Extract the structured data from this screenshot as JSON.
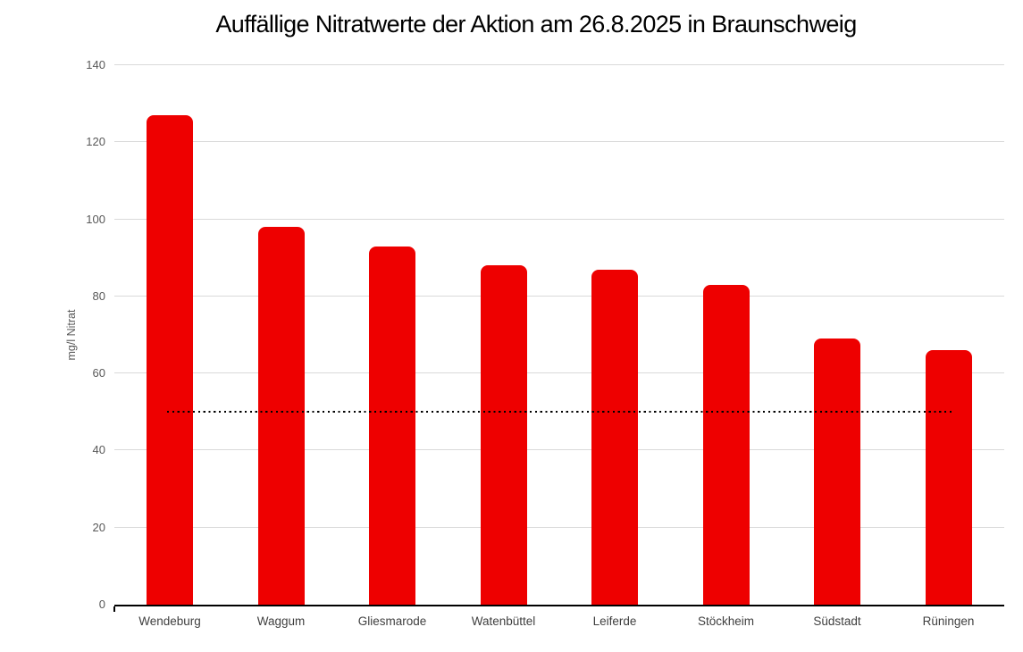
{
  "chart_data": {
    "type": "bar",
    "title": "Auffällige Nitratwerte der Aktion am 26.8.2025 in Braunschweig",
    "ylabel": "mg/l Nitrat",
    "xlabel": "",
    "categories": [
      "Wendeburg",
      "Waggum",
      "Gliesmarode",
      "Watenbüttel",
      "Leiferde",
      "Stöckheim",
      "Südstadt",
      "Rüningen"
    ],
    "values": [
      127,
      98,
      93,
      88,
      87,
      83,
      69,
      66
    ],
    "ylim": [
      0,
      140
    ],
    "ytick_step": 20,
    "ytick_labels": [
      "0",
      "20",
      "40",
      "60",
      "80",
      "100",
      "120",
      "140"
    ],
    "grid": "horizontal",
    "legend": "none",
    "bar_color": "#ee0000",
    "gridline_color": "#d9d9d9",
    "axis_line_color": "#000000",
    "tick_label_color": "#595959",
    "category_label_color": "#3f3f3f",
    "title_color": "#000000",
    "limit_line": {
      "value": 50,
      "color": "#000000",
      "style": "dotted"
    }
  }
}
